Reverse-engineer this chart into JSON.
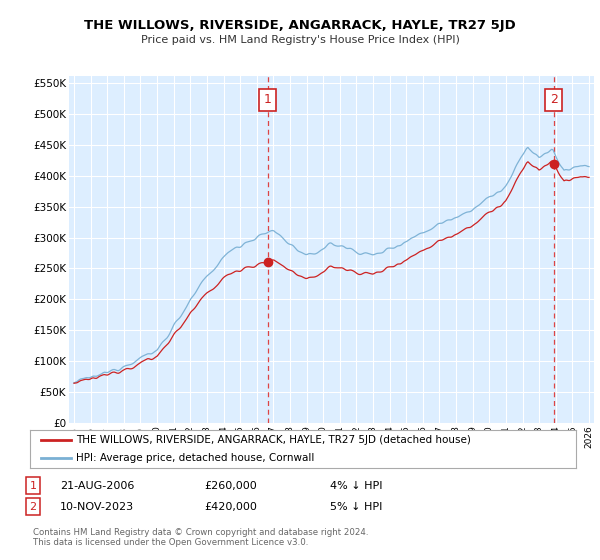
{
  "title": "THE WILLOWS, RIVERSIDE, ANGARRACK, HAYLE, TR27 5JD",
  "subtitle": "Price paid vs. HM Land Registry's House Price Index (HPI)",
  "ylim": [
    0,
    562500
  ],
  "yticks": [
    0,
    50000,
    100000,
    150000,
    200000,
    250000,
    300000,
    350000,
    400000,
    450000,
    500000,
    550000
  ],
  "ytick_labels": [
    "£0",
    "£50K",
    "£100K",
    "£150K",
    "£200K",
    "£250K",
    "£300K",
    "£350K",
    "£400K",
    "£450K",
    "£500K",
    "£550K"
  ],
  "hpi_color": "#7ab0d4",
  "price_color": "#cc2222",
  "vline_color": "#dd4444",
  "sale1_year": 2006.65,
  "sale1_price": 260000,
  "sale2_year": 2023.87,
  "sale2_price": 420000,
  "legend_label_red": "THE WILLOWS, RIVERSIDE, ANGARRACK, HAYLE, TR27 5JD (detached house)",
  "legend_label_blue": "HPI: Average price, detached house, Cornwall",
  "copyright": "Contains HM Land Registry data © Crown copyright and database right 2024.\nThis data is licensed under the Open Government Licence v3.0.",
  "plot_bg_color": "#ddeeff",
  "fig_bg_color": "#ffffff",
  "grid_color": "#ffffff",
  "annotation_border_color": "#cc2222",
  "annotation_text_color": "#cc2222"
}
